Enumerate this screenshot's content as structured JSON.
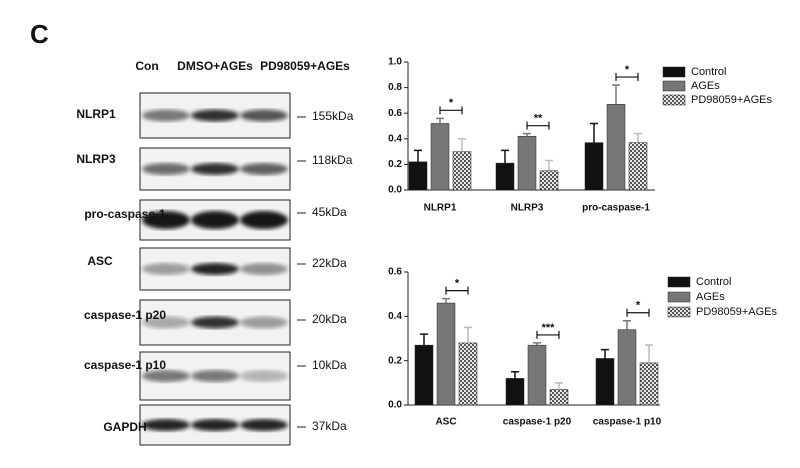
{
  "panel_label": "C",
  "blot": {
    "lanes": [
      "Con",
      "DMSO+AGEs",
      "PD98059+AGEs"
    ],
    "rows": [
      {
        "label": "NLRP1",
        "size": "155kDa"
      },
      {
        "label": "NLRP3",
        "size": "118kDa"
      },
      {
        "label": "pro-caspase-1",
        "size": "45kDa"
      },
      {
        "label": "ASC",
        "size": "22kDa"
      },
      {
        "label": "caspase-1 p20",
        "size": "20kDa"
      },
      {
        "label": "caspase-1 p10",
        "size": "10kDa"
      },
      {
        "label": "GAPDH",
        "size": "37kDa"
      }
    ]
  },
  "chart_data": [
    {
      "type": "bar",
      "categories": [
        "NLRP1",
        "NLRP3",
        "pro-caspase-1"
      ],
      "series": [
        {
          "name": "Control",
          "color": "#111111",
          "values": [
            0.22,
            0.21,
            0.37
          ],
          "errors": [
            0.09,
            0.1,
            0.15
          ]
        },
        {
          "name": "AGEs",
          "color": "#777777",
          "values": [
            0.52,
            0.42,
            0.67
          ],
          "errors": [
            0.04,
            0.02,
            0.15
          ]
        },
        {
          "name": "PD98059+AGEs",
          "color": "#bbbbbb",
          "hatch": true,
          "values": [
            0.3,
            0.15,
            0.37
          ],
          "errors": [
            0.1,
            0.08,
            0.07
          ]
        }
      ],
      "significance": [
        "*",
        "**",
        "*"
      ],
      "ylim": [
        0,
        1
      ],
      "yticks": [
        {
          "value": 0,
          "label": "0.0"
        },
        0.2,
        0.4,
        0.6,
        0.8,
        {
          "value": 1,
          "label": "1.0"
        }
      ],
      "legend": "right"
    },
    {
      "type": "bar",
      "categories": [
        "ASC",
        "caspase-1 p20",
        "caspase-1 p10"
      ],
      "series": [
        {
          "name": "Control",
          "color": "#111111",
          "values": [
            0.27,
            0.12,
            0.21
          ],
          "errors": [
            0.05,
            0.03,
            0.04
          ]
        },
        {
          "name": "AGEs",
          "color": "#777777",
          "values": [
            0.46,
            0.27,
            0.34
          ],
          "errors": [
            0.02,
            0.01,
            0.04
          ]
        },
        {
          "name": "PD98059+AGEs",
          "color": "#bbbbbb",
          "hatch": true,
          "values": [
            0.28,
            0.07,
            0.19
          ],
          "errors": [
            0.07,
            0.03,
            0.08
          ]
        }
      ],
      "significance": [
        "*",
        "***",
        "*"
      ],
      "ylim": [
        0,
        0.6
      ],
      "yticks": [
        {
          "value": 0,
          "label": "0.0"
        },
        0.2,
        0.4,
        0.6
      ],
      "legend": "right"
    }
  ]
}
